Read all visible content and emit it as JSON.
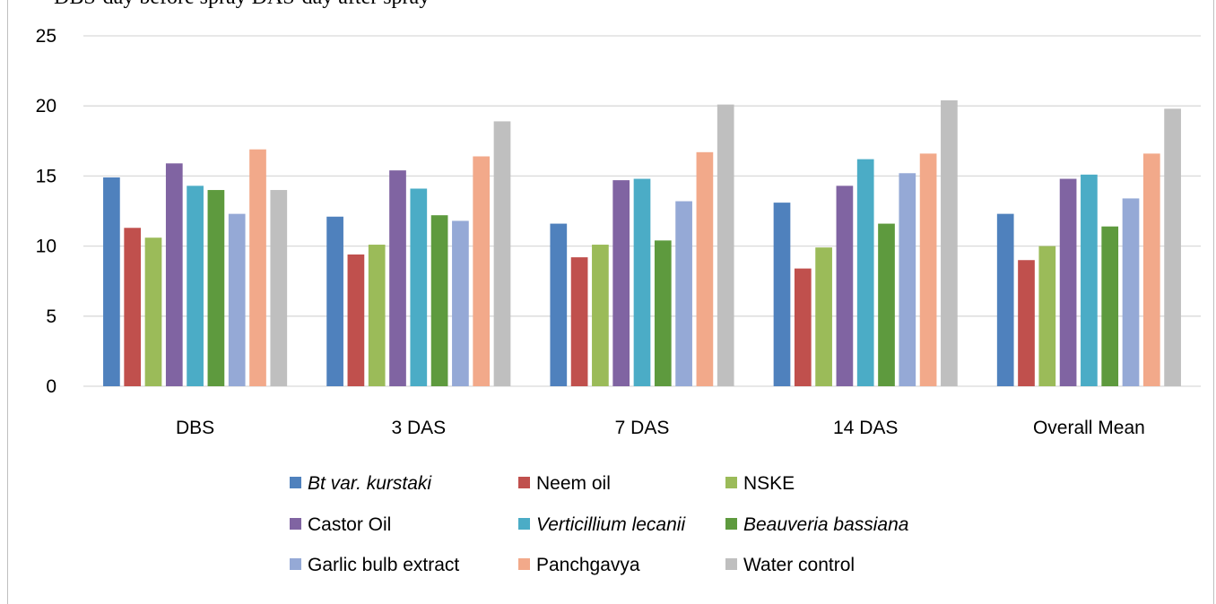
{
  "top_caption": "DBS-day before spray  DAS-day after spray",
  "chart_data": {
    "type": "bar",
    "title": "",
    "xlabel": "",
    "ylabel": "",
    "ylim": [
      0,
      25
    ],
    "yticks": [
      0,
      5,
      10,
      15,
      20,
      25
    ],
    "grid": "horizontal",
    "legend_position": "bottom",
    "categories": [
      "DBS",
      "3 DAS",
      "7 DAS",
      "14 DAS",
      "Overall Mean"
    ],
    "series": [
      {
        "name": "Bt var. kurstaki",
        "italic": true,
        "color": "#4f81bd",
        "values": [
          14.9,
          12.1,
          11.6,
          13.1,
          12.3
        ]
      },
      {
        "name": "Neem oil",
        "italic": false,
        "color": "#c0504d",
        "values": [
          11.3,
          9.4,
          9.2,
          8.4,
          9.0
        ]
      },
      {
        "name": "NSKE",
        "italic": false,
        "color": "#9bbb59",
        "values": [
          10.6,
          10.1,
          10.1,
          9.9,
          10.0
        ]
      },
      {
        "name": "Castor Oil",
        "italic": false,
        "color": "#8064a2",
        "values": [
          15.9,
          15.4,
          14.7,
          14.3,
          14.8
        ]
      },
      {
        "name": "Verticillium lecanii",
        "italic": true,
        "color": "#4bacc6",
        "values": [
          14.3,
          14.1,
          14.8,
          16.2,
          15.1
        ]
      },
      {
        "name": "Beauveria bassiana",
        "italic": true,
        "color": "#5e9a3e",
        "values": [
          14.0,
          12.2,
          10.4,
          11.6,
          11.4
        ]
      },
      {
        "name": "Garlic bulb extract",
        "italic": false,
        "color": "#95a9d6",
        "values": [
          12.3,
          11.8,
          13.2,
          15.2,
          13.4
        ]
      },
      {
        "name": "Panchgavya",
        "italic": false,
        "color": "#f2a98a",
        "values": [
          16.9,
          16.4,
          16.7,
          16.6,
          16.6
        ]
      },
      {
        "name": "Water control",
        "italic": false,
        "color": "#bfbfbf",
        "values": [
          14.0,
          18.9,
          20.1,
          20.4,
          19.8
        ]
      }
    ]
  }
}
